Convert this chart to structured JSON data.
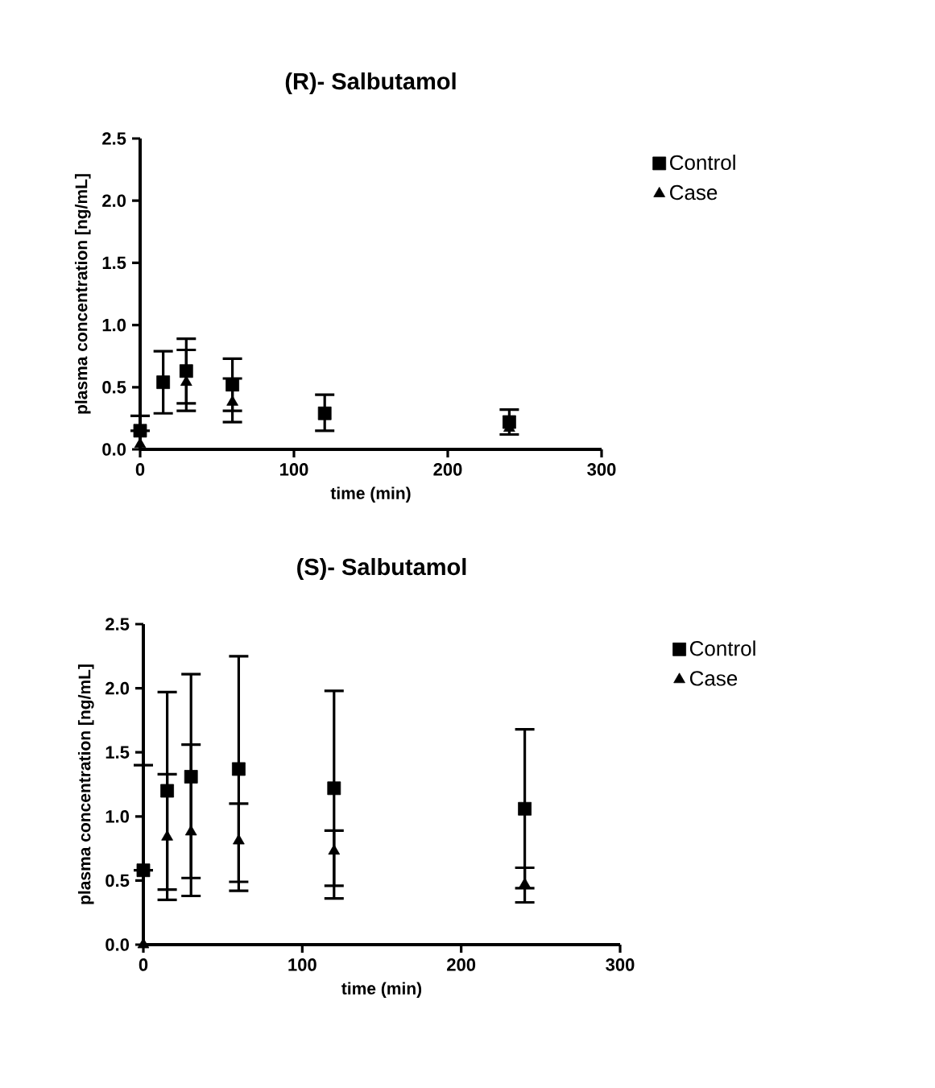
{
  "chart_data": [
    {
      "type": "scatter",
      "title": "(R)- Salbutamol",
      "xlabel": "time (min)",
      "ylabel": "plasma concentration [ng/mL]",
      "x": [
        0,
        15,
        30,
        60,
        120,
        240
      ],
      "xlim": [
        0,
        300
      ],
      "xticks": [
        0,
        100,
        200,
        300
      ],
      "ylim": [
        0,
        2.5
      ],
      "yticks": [
        {
          "value": 0,
          "label": "0.0"
        },
        {
          "value": 0.5,
          "label": "0.5"
        },
        {
          "value": 1,
          "label": "1.0"
        },
        {
          "value": 1.5,
          "label": "1.5"
        },
        {
          "value": 2,
          "label": "2.0"
        },
        {
          "value": 2.5,
          "label": "2.5"
        }
      ],
      "legend": "right",
      "series": [
        {
          "name": "Control",
          "color": "#000000",
          "marker": "square",
          "values": [
            0.15,
            0.54,
            0.63,
            0.52,
            0.29,
            0.22
          ],
          "errors": [
            [
              0.15,
              0.27
            ],
            [
              0.29,
              0.79
            ],
            [
              0.37,
              0.89
            ],
            [
              0.31,
              0.73
            ],
            [
              0.15,
              0.44
            ],
            [
              0.12,
              0.32
            ]
          ]
        },
        {
          "name": "Case",
          "color": "#000000",
          "marker": "triangle",
          "values": [
            0.04,
            null,
            0.54,
            0.38,
            null,
            0.17
          ],
          "errors": [
            null,
            null,
            [
              0.31,
              0.8
            ],
            [
              0.22,
              0.57
            ],
            null,
            null
          ]
        }
      ]
    },
    {
      "type": "scatter",
      "title": "(S)- Salbutamol",
      "xlabel": "time (min)",
      "ylabel": "plasma concentration [ng/mL]",
      "x": [
        0,
        15,
        30,
        60,
        120,
        240
      ],
      "xlim": [
        0,
        300
      ],
      "xticks": [
        0,
        100,
        200,
        300
      ],
      "ylim": [
        0,
        2.5
      ],
      "yticks": [
        {
          "value": 0,
          "label": "0.0"
        },
        {
          "value": 0.5,
          "label": "0.5"
        },
        {
          "value": 1,
          "label": "1.0"
        },
        {
          "value": 1.5,
          "label": "1.5"
        },
        {
          "value": 2,
          "label": "2.0"
        },
        {
          "value": 2.5,
          "label": "2.5"
        }
      ],
      "legend": "right",
      "series": [
        {
          "name": "Control",
          "color": "#000000",
          "marker": "square",
          "values": [
            0.58,
            1.2,
            1.31,
            1.37,
            1.22,
            1.06
          ],
          "errors": [
            [
              0.58,
              1.4
            ],
            [
              0.43,
              1.97
            ],
            [
              0.52,
              2.11
            ],
            [
              0.49,
              2.25
            ],
            [
              0.46,
              1.98
            ],
            [
              0.44,
              1.68
            ]
          ]
        },
        {
          "name": "Case",
          "color": "#000000",
          "marker": "triangle",
          "values": [
            0.0,
            0.84,
            0.88,
            0.81,
            0.73,
            0.47
          ],
          "errors": [
            null,
            [
              0.35,
              1.33
            ],
            [
              0.38,
              1.56
            ],
            [
              0.42,
              1.1
            ],
            [
              0.36,
              0.89
            ],
            [
              0.33,
              0.6
            ]
          ]
        }
      ]
    }
  ]
}
